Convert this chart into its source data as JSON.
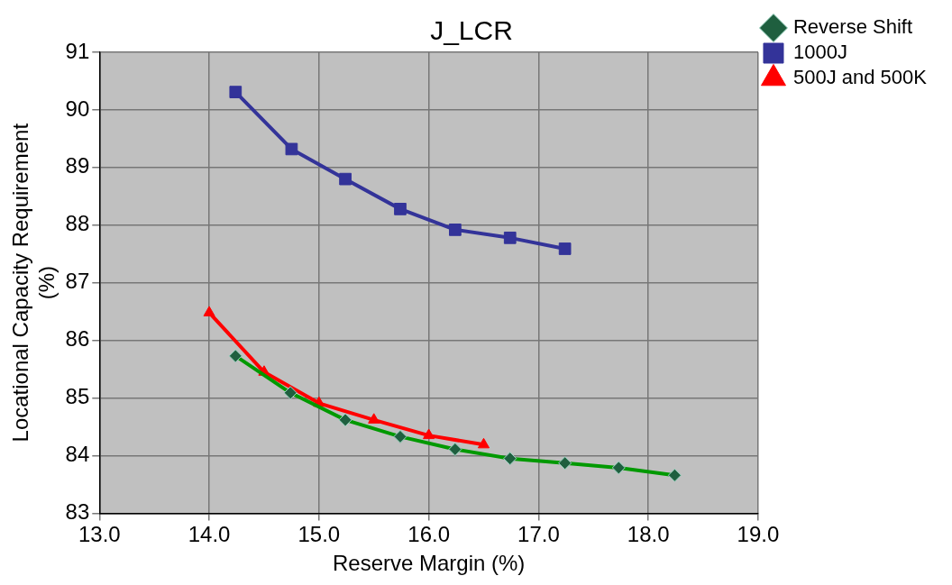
{
  "chart_data": {
    "type": "line",
    "title": "J_LCR",
    "xlabel": "Reserve Margin (%)",
    "ylabel": "Locational Capacity Requirement\n(%)",
    "xlim": [
      13,
      19
    ],
    "xticks": [
      {
        "value": 13,
        "label": "13.0"
      },
      {
        "value": 14,
        "label": "14.0"
      },
      {
        "value": 15,
        "label": "15.0"
      },
      {
        "value": 16,
        "label": "16.0"
      },
      {
        "value": 17,
        "label": "17.0"
      },
      {
        "value": 18,
        "label": "18.0"
      },
      {
        "value": 19,
        "label": "19.0"
      }
    ],
    "ylim": [
      83,
      91
    ],
    "yticks": [
      83,
      84,
      85,
      86,
      87,
      88,
      89,
      90,
      91
    ],
    "grid": true,
    "legend": "right",
    "line_style": "solid",
    "series": [
      {
        "name": "Reverse Shift",
        "color": "#009900",
        "marker": "diamond",
        "x": [
          14.24,
          14.74,
          15.24,
          15.74,
          16.24,
          16.74,
          17.24,
          17.73,
          18.24
        ],
        "values": [
          85.73,
          85.09,
          84.62,
          84.33,
          84.11,
          83.95,
          83.87,
          83.79,
          83.66
        ]
      },
      {
        "name": "1000J",
        "color": "#333399",
        "marker": "square",
        "x": [
          14.24,
          14.75,
          15.24,
          15.74,
          16.24,
          16.74,
          17.24
        ],
        "values": [
          90.31,
          89.32,
          88.8,
          88.28,
          87.92,
          87.78,
          87.59
        ]
      },
      {
        "name": "500J and 500K",
        "color": "#ff0000",
        "marker": "triangle",
        "x": [
          14.0,
          14.5,
          15.0,
          15.5,
          16.0,
          16.5
        ],
        "values": [
          86.48,
          85.45,
          84.91,
          84.62,
          84.35,
          84.19
        ]
      }
    ]
  }
}
